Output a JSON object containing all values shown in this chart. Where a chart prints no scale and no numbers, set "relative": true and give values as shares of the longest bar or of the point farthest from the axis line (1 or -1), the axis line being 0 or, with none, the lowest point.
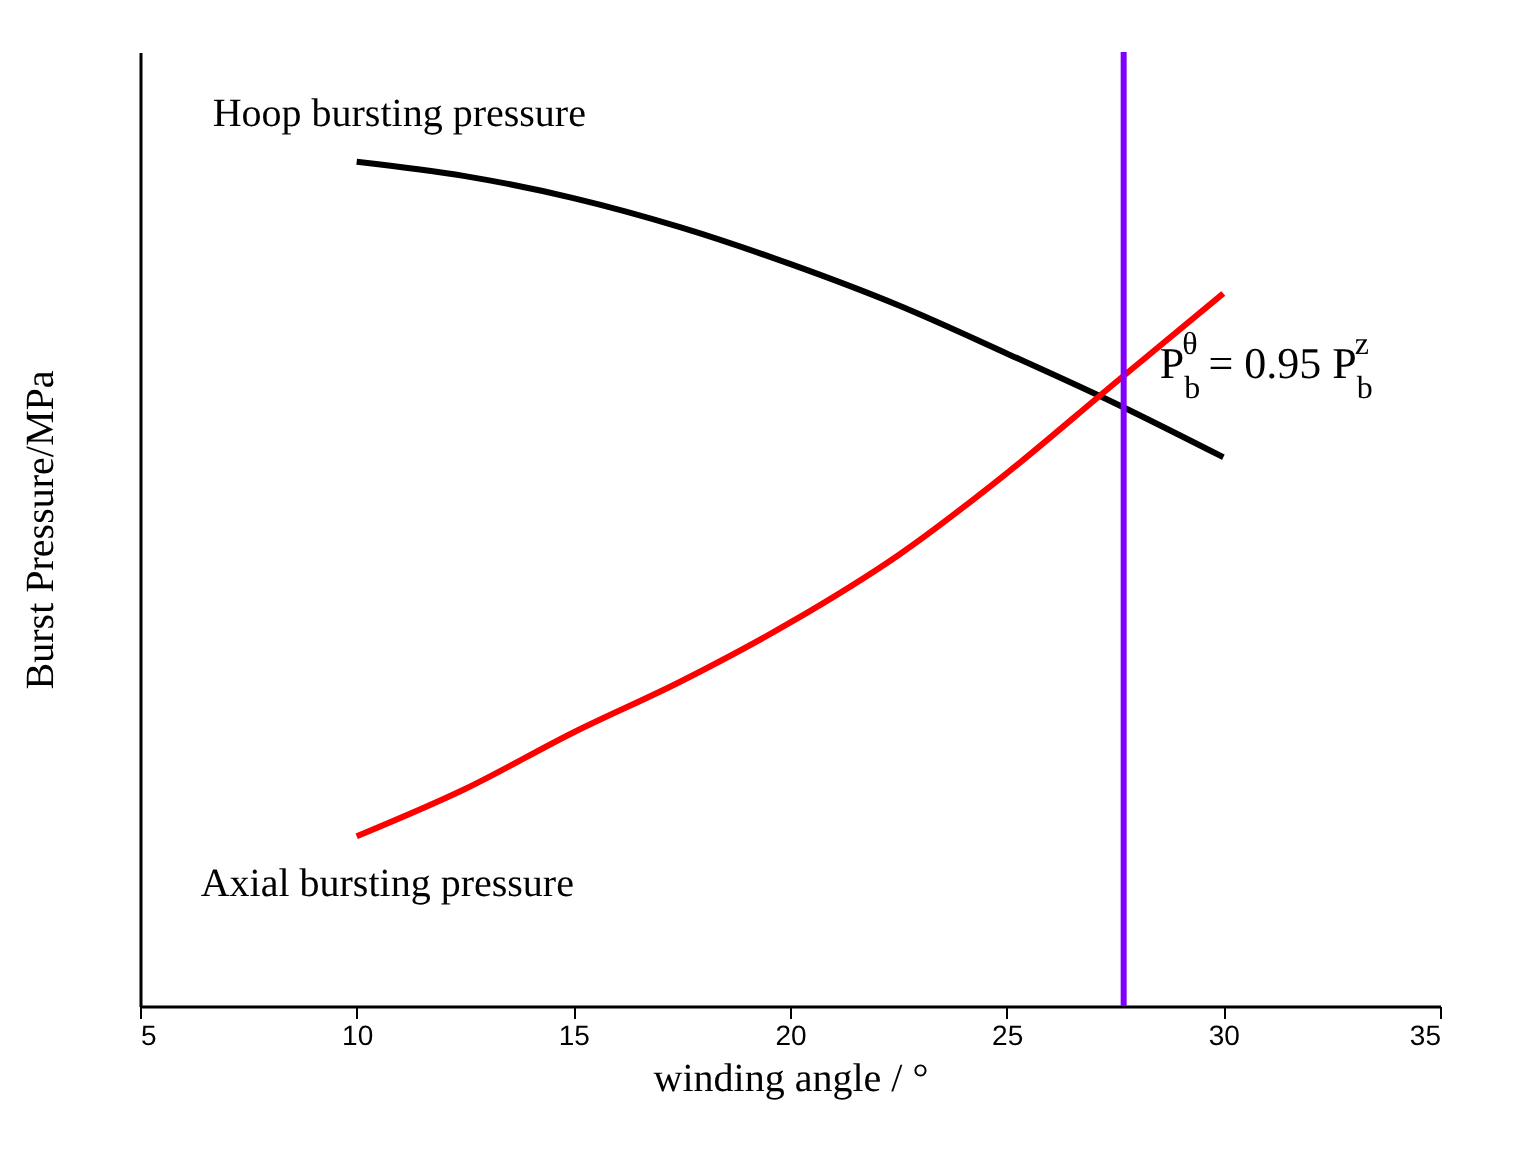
{
  "chart_data": {
    "type": "line",
    "xlabel": "winding angle / °",
    "ylabel": "Burst Pressure/MPa",
    "relative": true,
    "x": [
      10,
      12.5,
      15,
      17.5,
      20,
      22.5,
      25,
      27.5,
      30
    ],
    "series": [
      {
        "name": "Hoop bursting pressure",
        "color": "#000000",
        "values": [
          1,
          0.983,
          0.957,
          0.922,
          0.879,
          0.83,
          0.773,
          0.714,
          0.65
        ]
      },
      {
        "name": "Axial bursting pressure",
        "color": "#ff0000",
        "values": [
          0.201,
          0.257,
          0.324,
          0.385,
          0.454,
          0.534,
          0.631,
          0.738,
          0.844
        ]
      }
    ],
    "xlim": [
      5,
      35
    ],
    "xticks": [
      5,
      10,
      15,
      20,
      25,
      30,
      35
    ],
    "ref_lines": [
      {
        "axis": "x",
        "value": 27.7,
        "color": "#8000ff"
      }
    ],
    "annotations": [
      {
        "text": "P$_{b}$$^{θ}$ = 0.95 P$_{b}$$^{z}$",
        "x": 27.7,
        "y": 0.76
      }
    ],
    "grid": false,
    "legend": false
  }
}
